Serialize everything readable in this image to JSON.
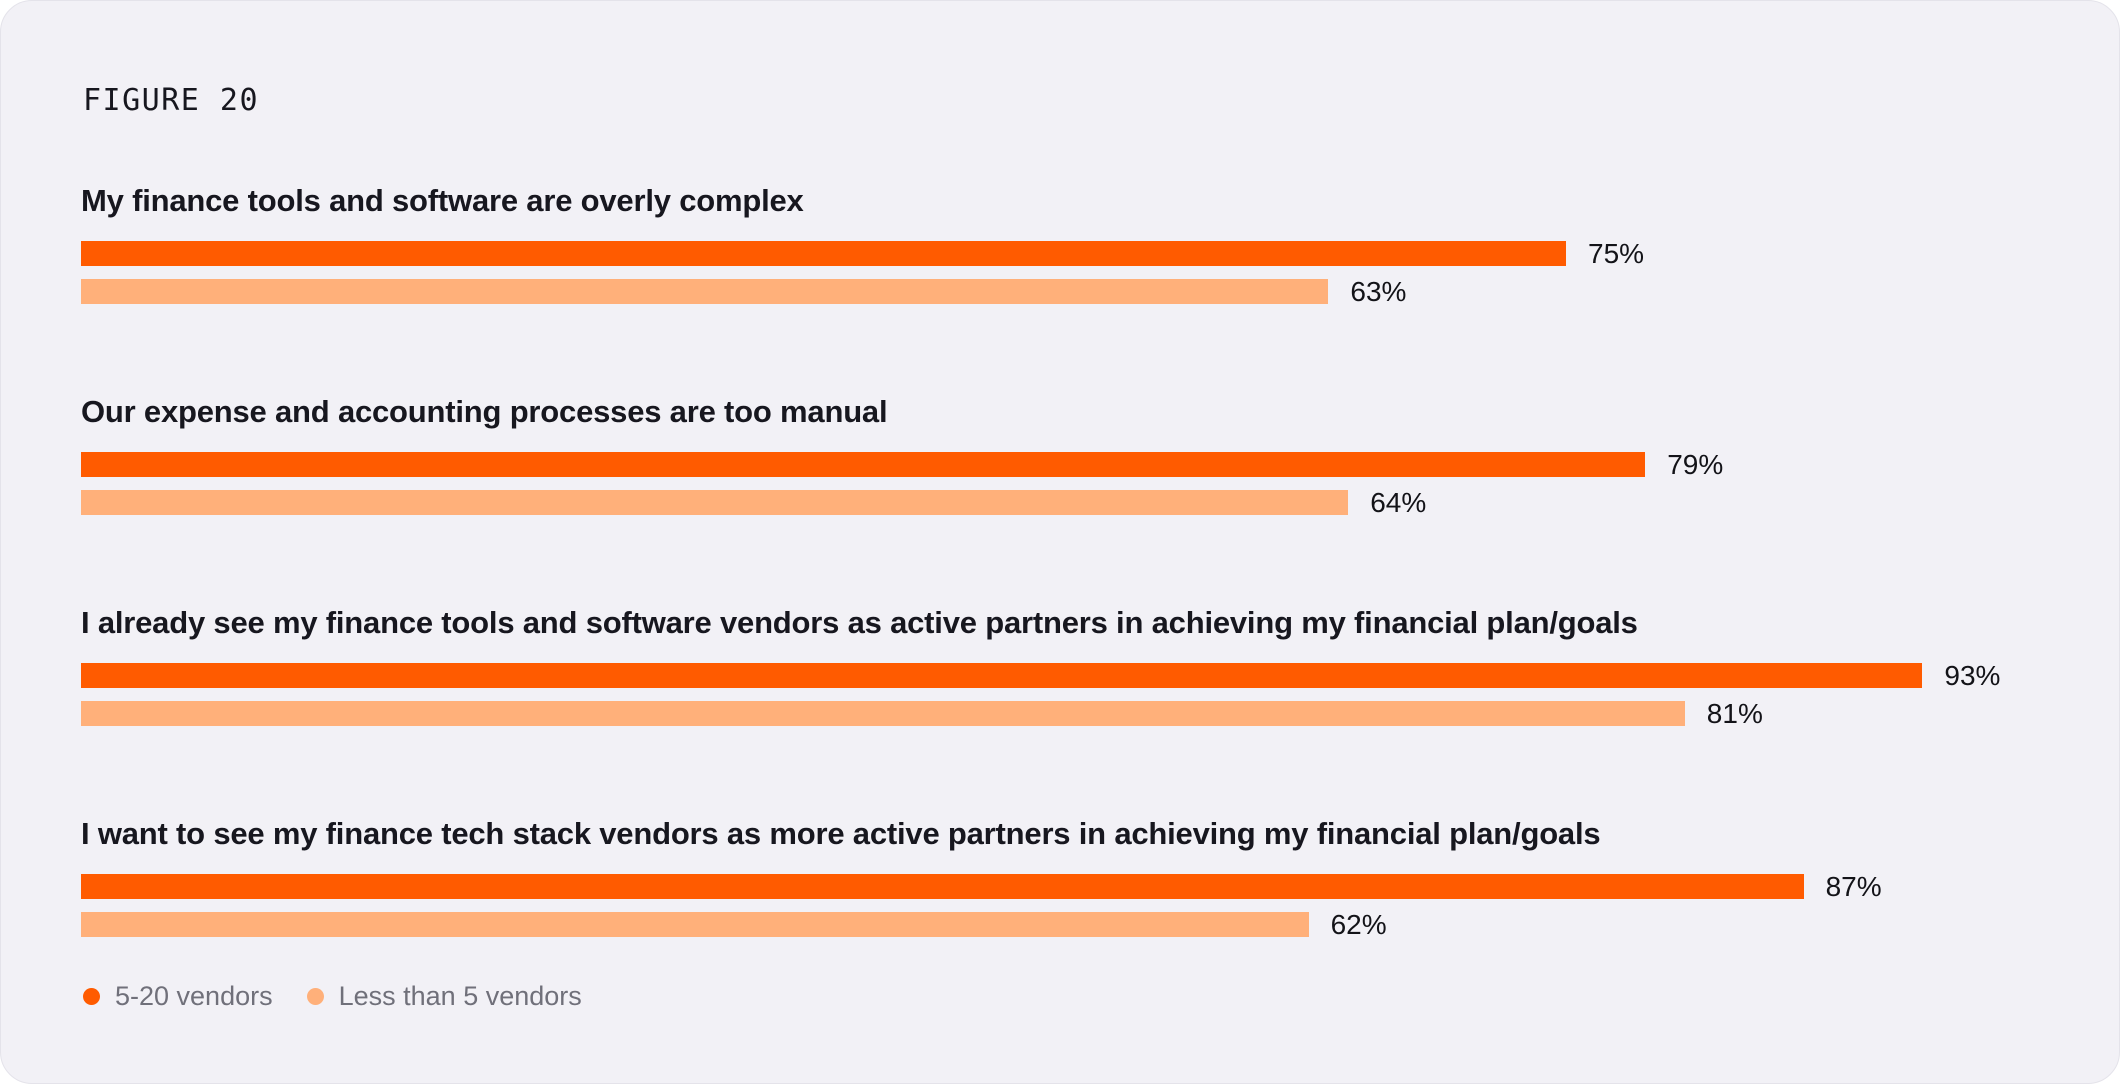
{
  "figure_label": "FIGURE 20",
  "colors": {
    "card_background": "#F2F1F6",
    "card_border": "#E4E3EA",
    "text_primary": "#17171F",
    "text_legend": "#70707A",
    "series_primary": "#FF5B00",
    "series_secondary": "#FFB07A"
  },
  "chart_data": {
    "type": "bar",
    "orientation": "horizontal",
    "title": "FIGURE 20",
    "unit": "%",
    "xlim": [
      0,
      100
    ],
    "grid": false,
    "value_labels": true,
    "legend_position": "bottom-left",
    "categories": [
      "My finance tools and software are overly complex",
      "Our expense and accounting processes are too manual",
      "I already see my finance tools and software vendors as active partners in achieving my financial plan/goals",
      "I want to see my finance tech stack vendors as more active partners in achieving my financial plan/goals"
    ],
    "series": [
      {
        "name": "5-20 vendors",
        "color": "#FF5B00",
        "values": [
          75,
          79,
          93,
          87
        ]
      },
      {
        "name": "Less than 5 vendors",
        "color": "#FFB07A",
        "values": [
          63,
          64,
          81,
          62
        ]
      }
    ]
  },
  "legend": {
    "items": [
      {
        "label": "5-20 vendors",
        "color": "#FF5B00"
      },
      {
        "label": "Less than 5 vendors",
        "color": "#FFB07A"
      }
    ]
  }
}
